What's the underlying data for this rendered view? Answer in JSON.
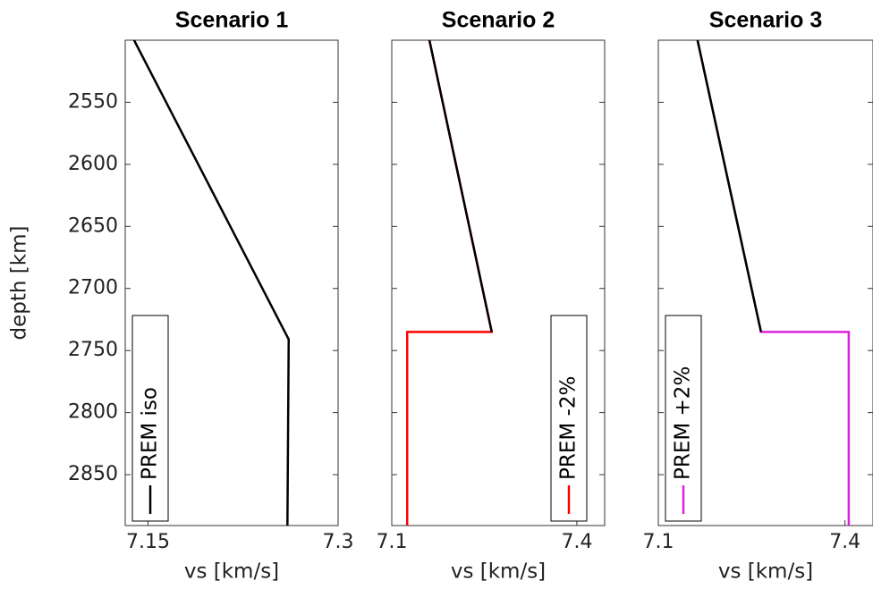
{
  "chart_data": [
    {
      "type": "line",
      "title": "Scenario 1",
      "x_label": "vs [km/s]",
      "y_label": "depth [km]",
      "xlim": [
        7.132,
        7.3
      ],
      "xticks": [
        7.15,
        7.3
      ],
      "ylim": [
        2500,
        2891
      ],
      "y_inverted": true,
      "yticks": [
        2550,
        2600,
        2650,
        2700,
        2750,
        2800,
        2850
      ],
      "legend": "lower left",
      "series": [
        {
          "name": "PREM iso",
          "color": "#000000",
          "x": [
            7.139,
            7.261,
            7.26
          ],
          "y": [
            2500,
            2741,
            2891
          ]
        }
      ]
    },
    {
      "type": "line",
      "title": "Scenario 2",
      "x_label": "vs [km/s]",
      "xlim": [
        7.1,
        7.445
      ],
      "xticks": [
        7.1,
        7.4
      ],
      "ylim": [
        2500,
        2891
      ],
      "y_inverted": true,
      "legend": "lower right",
      "series": [
        {
          "name": "PREM -2%",
          "color": "#ff0000",
          "x": [
            7.161,
            7.262,
            7.125,
            7.125
          ],
          "y": [
            2500,
            2735,
            2735,
            2891
          ]
        },
        {
          "color": "#000000",
          "x": [
            7.161,
            7.262
          ],
          "y": [
            2500,
            2735
          ]
        }
      ]
    },
    {
      "type": "line",
      "title": "Scenario 3",
      "x_label": "vs [km/s]",
      "xlim": [
        7.1,
        7.445
      ],
      "xticks": [
        7.1,
        7.4
      ],
      "ylim": [
        2500,
        2891
      ],
      "y_inverted": true,
      "legend": "lower left",
      "series": [
        {
          "name": "PREM +2%",
          "color": "#dd22dd",
          "x": [
            7.163,
            7.265,
            7.406,
            7.406
          ],
          "y": [
            2500,
            2735,
            2735,
            2891
          ]
        },
        {
          "color": "#000000",
          "x": [
            7.163,
            7.265
          ],
          "y": [
            2500,
            2735
          ]
        }
      ]
    }
  ]
}
